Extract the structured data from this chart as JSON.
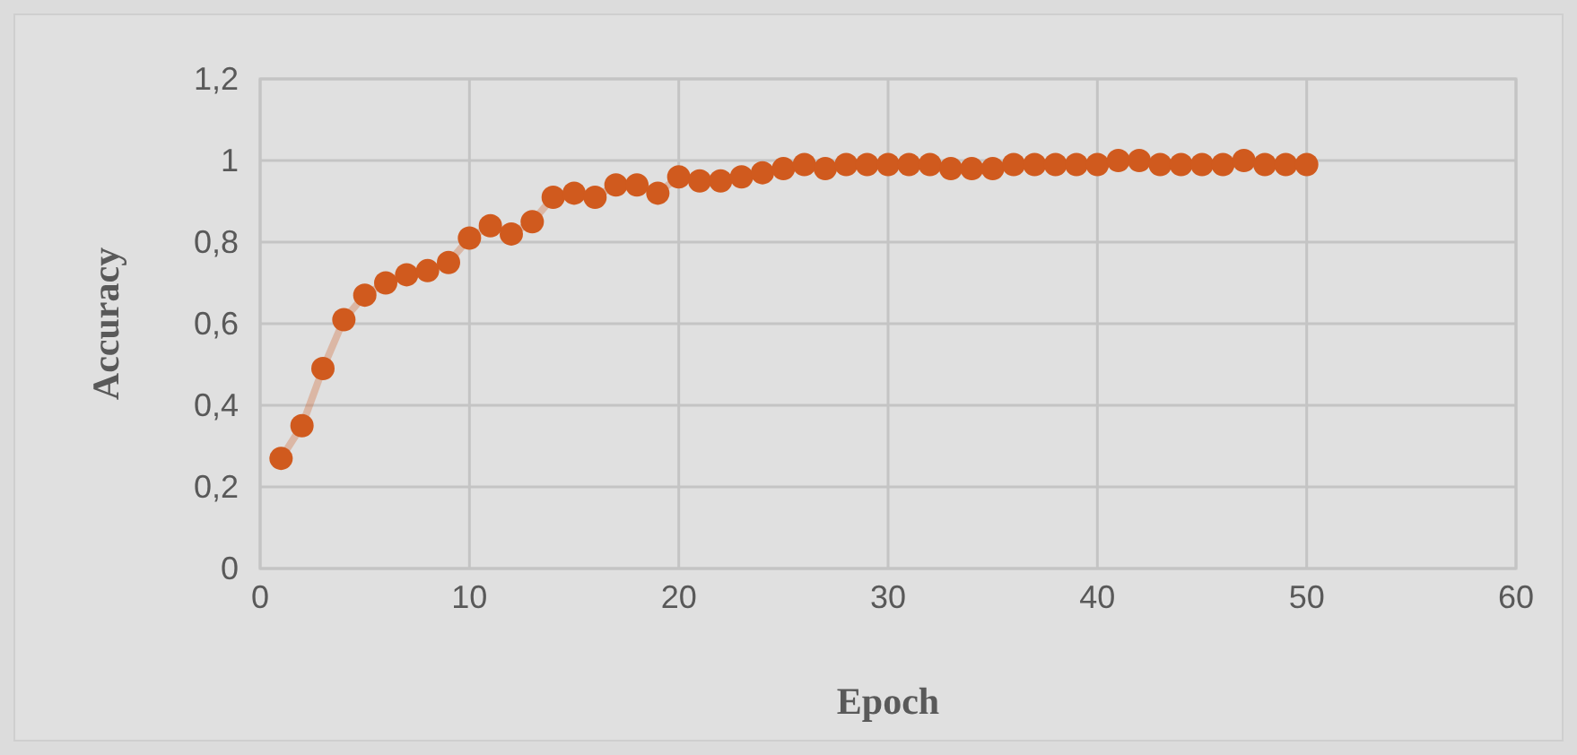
{
  "chart_data": {
    "type": "line",
    "xlabel": "Epoch",
    "ylabel": "Accuracy",
    "x": [
      1,
      2,
      3,
      4,
      5,
      6,
      7,
      8,
      9,
      10,
      11,
      12,
      13,
      14,
      15,
      16,
      17,
      18,
      19,
      20,
      21,
      22,
      23,
      24,
      25,
      26,
      27,
      28,
      29,
      30,
      31,
      32,
      33,
      34,
      35,
      36,
      37,
      38,
      39,
      40,
      41,
      42,
      43,
      44,
      45,
      46,
      47,
      48,
      49,
      50
    ],
    "series": [
      {
        "color": "#d05a1e",
        "values": [
          0.27,
          0.35,
          0.49,
          0.61,
          0.67,
          0.7,
          0.72,
          0.73,
          0.75,
          0.81,
          0.84,
          0.82,
          0.85,
          0.91,
          0.92,
          0.91,
          0.94,
          0.94,
          0.92,
          0.96,
          0.95,
          0.95,
          0.96,
          0.97,
          0.98,
          0.99,
          0.98,
          0.99,
          0.99,
          0.99,
          0.99,
          0.99,
          0.98,
          0.98,
          0.98,
          0.99,
          0.99,
          0.99,
          0.99,
          0.99,
          1.0,
          1.0,
          0.99,
          0.99,
          0.99,
          0.99,
          1.0,
          0.99,
          0.99,
          0.99
        ]
      }
    ],
    "xlim": [
      0,
      60
    ],
    "xticks": [
      0,
      10,
      20,
      30,
      40,
      50,
      60
    ],
    "ylim": [
      0,
      1.2
    ],
    "yticks": [
      0,
      {
        "value": 0.2,
        "label": "0,2"
      },
      {
        "value": 0.4,
        "label": "0,4"
      },
      {
        "value": 0.6,
        "label": "0,6"
      },
      {
        "value": 0.8,
        "label": "0,8"
      },
      1,
      {
        "value": 1.2,
        "label": "1,2"
      }
    ],
    "grid": true,
    "marker": "circle"
  }
}
